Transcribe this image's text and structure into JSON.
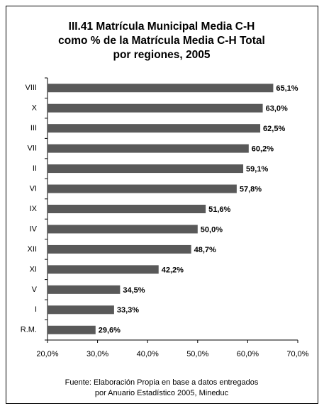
{
  "chart_data": {
    "type": "bar",
    "title": [
      "III.41 Matrícula Municipal Media C-H",
      "como % de la Matrícula Media C-H Total",
      "por regiones, 2005"
    ],
    "categories": [
      "VIII",
      "X",
      "III",
      "VII",
      "II",
      "VI",
      "IX",
      "IV",
      "XII",
      "XI",
      "V",
      "I",
      "R.M."
    ],
    "values": [
      65.1,
      63.0,
      62.5,
      60.2,
      59.1,
      57.8,
      51.6,
      50.0,
      48.7,
      42.2,
      34.5,
      33.3,
      29.6
    ],
    "value_labels": [
      "65,1%",
      "63,0%",
      "62,5%",
      "60,2%",
      "59,1%",
      "57,8%",
      "51,6%",
      "50,0%",
      "48,7%",
      "42,2%",
      "34,5%",
      "33,3%",
      "29,6%"
    ],
    "color": "#595959",
    "xlim": [
      20,
      70
    ],
    "xticks": [
      {
        "value": 20,
        "label": "20,0%"
      },
      {
        "value": 30,
        "label": "30,0%"
      },
      {
        "value": 40,
        "label": "40,0%"
      },
      {
        "value": 50,
        "label": "50,0%"
      },
      {
        "value": 60,
        "label": "60,0%"
      },
      {
        "value": 70,
        "label": "70,0%"
      }
    ],
    "source": [
      "Fuente: Elaboración Propia en base a datos entregados",
      "por Anuario Estadístico 2005, Mineduc"
    ]
  }
}
